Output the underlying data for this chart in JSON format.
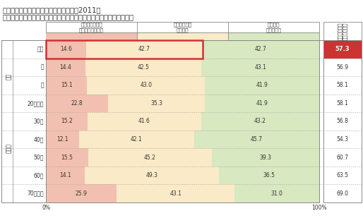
{
  "title_line1": "新築マンション購入に際しての意識調査2011年",
  "title_line2": "「マンション住民同士のコミュニティへの参加」に対する意識の変化",
  "col_headers": [
    "非常に強く意識\nするようになった",
    "意識するよう\nになった",
    "震災前と\n変わらない"
  ],
  "right_header_chars": [
    "意",
    "識",
    "す",
    "る",
    "よ",
    "う",
    "に",
    "な",
    "っ",
    "た",
    "・",
    "計"
  ],
  "right_header_line1": "意識するよう",
  "right_header_line2": "になった・計",
  "rows": [
    {
      "label": "全体",
      "group": "",
      "group_span": 1,
      "v1": 14.6,
      "v2": 42.7,
      "v3": 42.7,
      "total": 57.3,
      "highlight": true
    },
    {
      "label": "男",
      "group": "性別",
      "group_span": 2,
      "v1": 14.4,
      "v2": 42.5,
      "v3": 43.1,
      "total": 56.9,
      "highlight": false
    },
    {
      "label": "女",
      "group": "",
      "group_span": 0,
      "v1": 15.1,
      "v2": 43.0,
      "v3": 41.9,
      "total": 58.1,
      "highlight": false
    },
    {
      "label": "20代以下",
      "group": "年代別",
      "group_span": 6,
      "v1": 22.8,
      "v2": 35.3,
      "v3": 41.9,
      "total": 58.1,
      "highlight": false
    },
    {
      "label": "30代",
      "group": "",
      "group_span": 0,
      "v1": 15.2,
      "v2": 41.6,
      "v3": 43.2,
      "total": 56.8,
      "highlight": false
    },
    {
      "label": "40代",
      "group": "",
      "group_span": 0,
      "v1": 12.1,
      "v2": 42.1,
      "v3": 45.7,
      "total": 54.3,
      "highlight": false
    },
    {
      "label": "50代",
      "group": "",
      "group_span": 0,
      "v1": 15.5,
      "v2": 45.2,
      "v3": 39.3,
      "total": 60.7,
      "highlight": false
    },
    {
      "label": "60代",
      "group": "",
      "group_span": 0,
      "v1": 14.1,
      "v2": 49.3,
      "v3": 36.5,
      "total": 63.5,
      "highlight": false
    },
    {
      "label": "70代以上",
      "group": "",
      "group_span": 0,
      "v1": 25.9,
      "v2": 43.1,
      "v3": 31.0,
      "total": 69.0,
      "highlight": false
    }
  ],
  "color_v1": "#f2c0b0",
  "color_v2": "#faeac8",
  "color_v3": "#d8e8c0",
  "color_total_highlight": "#cc3333",
  "color_total_text_highlight": "#ffffff",
  "color_highlight_border": "#cc3333",
  "bar_max": 100.0,
  "bg_color": "#ffffff",
  "text_color": "#333333",
  "dotted_color": "#aaaaaa",
  "border_color": "#888888"
}
